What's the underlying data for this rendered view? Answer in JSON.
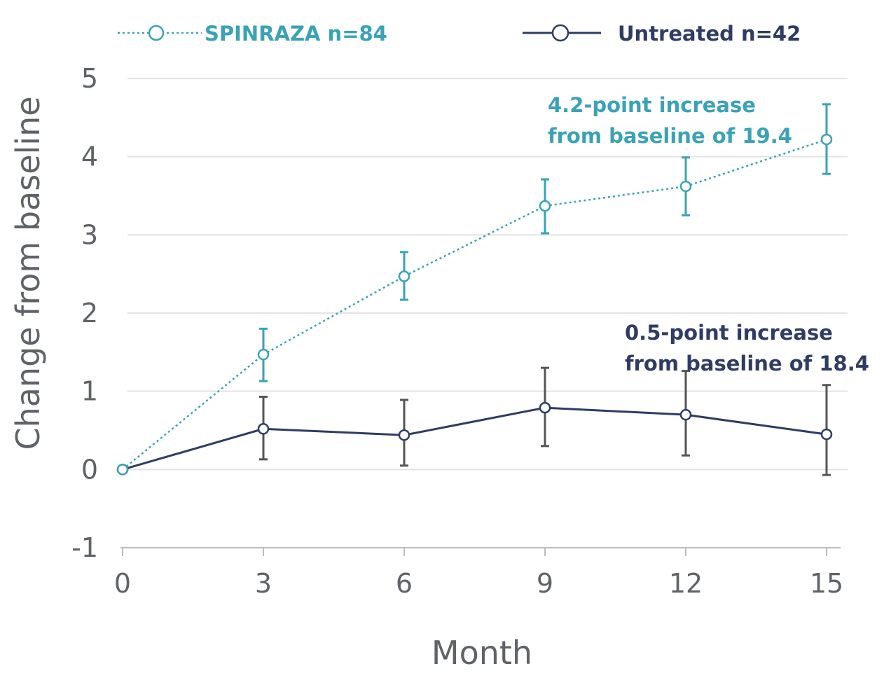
{
  "chart_data": {
    "type": "line",
    "title": "",
    "xlabel": "Month",
    "ylabel": "Change from baseline",
    "x": [
      0,
      3,
      6,
      9,
      12,
      15
    ],
    "x_ticks": [
      "0",
      "3",
      "6",
      "9",
      "12",
      "15"
    ],
    "y_ticks": [
      "-1",
      "0",
      "1",
      "2",
      "3",
      "4",
      "5"
    ],
    "xlim": [
      0,
      15
    ],
    "ylim": [
      -1,
      5
    ],
    "grid": "horizontal",
    "legend_placement": "top",
    "series": [
      {
        "name": "SPINRAZA n=84",
        "color": "#3aa2b7",
        "line_style": "dotted",
        "values": [
          0,
          1.47,
          2.47,
          3.37,
          3.62,
          4.22
        ],
        "error_low": [
          0,
          1.13,
          2.17,
          3.02,
          3.25,
          3.78
        ],
        "error_high": [
          0,
          1.8,
          2.78,
          3.71,
          3.99,
          4.67
        ]
      },
      {
        "name": "Untreated n=42",
        "color": "#2f3c63",
        "line_style": "solid",
        "values": [
          0,
          0.52,
          0.44,
          0.79,
          0.7,
          0.45
        ],
        "error_low": [
          0,
          0.13,
          0.05,
          0.3,
          0.18,
          -0.07
        ],
        "error_high": [
          0,
          0.93,
          0.89,
          1.3,
          1.26,
          1.08
        ]
      }
    ],
    "annotations": [
      {
        "series": 0,
        "lines": [
          "4.2-point increase",
          "from baseline of 19.4"
        ]
      },
      {
        "series": 1,
        "lines": [
          "0.5-point increase",
          "from baseline of 18.4"
        ]
      }
    ]
  }
}
